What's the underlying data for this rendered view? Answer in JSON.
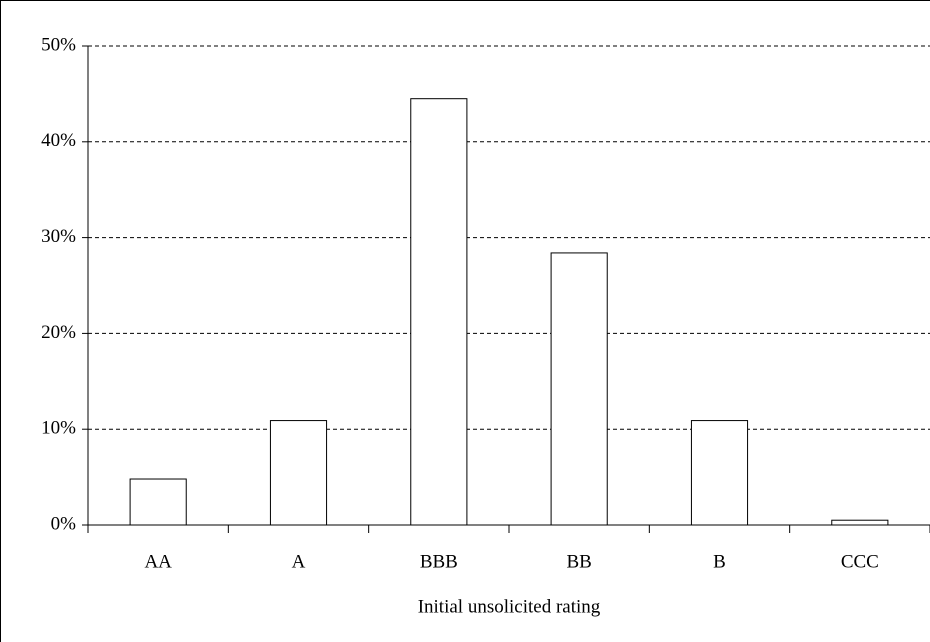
{
  "chart_data": {
    "type": "bar",
    "x_label": "Initial unsolicited rating",
    "categories": [
      "AA",
      "A",
      "BBB",
      "BB",
      "B",
      "CCC"
    ],
    "values": [
      4.8,
      10.9,
      44.5,
      28.4,
      10.9,
      0.5
    ],
    "color": "#ffffff",
    "ylim": [
      0,
      50
    ],
    "yticks": [
      {
        "value": 0,
        "label": "0%"
      },
      {
        "value": 10,
        "label": "10%"
      },
      {
        "value": 20,
        "label": "20%"
      },
      {
        "value": 30,
        "label": "30%"
      },
      {
        "value": 40,
        "label": "40%"
      },
      {
        "value": 50,
        "label": "50%"
      }
    ],
    "grid": true
  }
}
